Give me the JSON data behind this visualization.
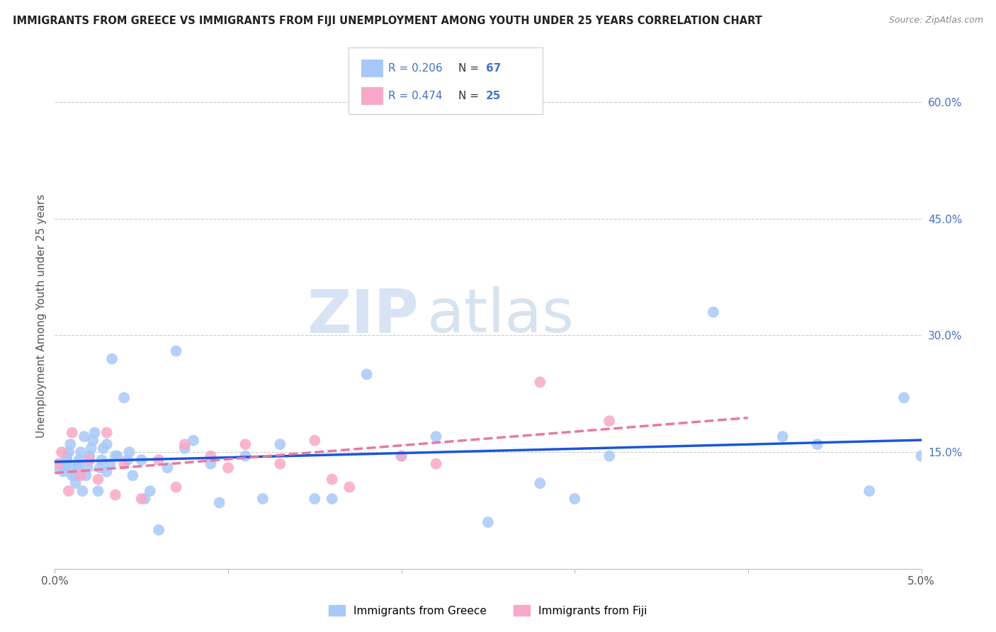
{
  "title": "IMMIGRANTS FROM GREECE VS IMMIGRANTS FROM FIJI UNEMPLOYMENT AMONG YOUTH UNDER 25 YEARS CORRELATION CHART",
  "source": "Source: ZipAtlas.com",
  "ylabel": "Unemployment Among Youth under 25 years",
  "right_yticks": [
    "60.0%",
    "45.0%",
    "30.0%",
    "15.0%"
  ],
  "right_ytick_vals": [
    0.6,
    0.45,
    0.3,
    0.15
  ],
  "bottom_legend1": "Immigrants from Greece",
  "bottom_legend2": "Immigrants from Fiji",
  "greece_color": "#a8c8f8",
  "fiji_color": "#f8a8c8",
  "greece_line_color": "#1a56db",
  "fiji_line_color": "#e879a0",
  "background_color": "#ffffff",
  "watermark_zip": "ZIP",
  "watermark_atlas": "atlas",
  "greece_R": 0.206,
  "greece_N": 67,
  "fiji_R": 0.474,
  "fiji_N": 25,
  "xlim": [
    0.0,
    0.05
  ],
  "ylim": [
    0.0,
    0.65
  ],
  "greece_x": [
    0.0002,
    0.0003,
    0.0005,
    0.0006,
    0.0007,
    0.0007,
    0.0008,
    0.0009,
    0.001,
    0.001,
    0.0012,
    0.0012,
    0.0013,
    0.0014,
    0.0014,
    0.0015,
    0.0016,
    0.0017,
    0.0018,
    0.0019,
    0.002,
    0.002,
    0.0021,
    0.0022,
    0.0023,
    0.0025,
    0.0026,
    0.0027,
    0.0028,
    0.003,
    0.003,
    0.0032,
    0.0033,
    0.0035,
    0.0036,
    0.004,
    0.0042,
    0.0043,
    0.0045,
    0.005,
    0.0052,
    0.0055,
    0.006,
    0.0065,
    0.007,
    0.0075,
    0.008,
    0.009,
    0.0095,
    0.011,
    0.012,
    0.013,
    0.015,
    0.016,
    0.018,
    0.02,
    0.022,
    0.025,
    0.028,
    0.03,
    0.032,
    0.038,
    0.042,
    0.044,
    0.047,
    0.049,
    0.05
  ],
  "greece_y": [
    0.13,
    0.135,
    0.125,
    0.13,
    0.14,
    0.145,
    0.15,
    0.16,
    0.12,
    0.13,
    0.11,
    0.12,
    0.13,
    0.135,
    0.14,
    0.15,
    0.1,
    0.17,
    0.12,
    0.13,
    0.14,
    0.145,
    0.155,
    0.165,
    0.175,
    0.1,
    0.13,
    0.14,
    0.155,
    0.16,
    0.125,
    0.135,
    0.27,
    0.145,
    0.145,
    0.22,
    0.14,
    0.15,
    0.12,
    0.14,
    0.09,
    0.1,
    0.05,
    0.13,
    0.28,
    0.155,
    0.165,
    0.135,
    0.085,
    0.145,
    0.09,
    0.16,
    0.09,
    0.09,
    0.25,
    0.145,
    0.17,
    0.06,
    0.11,
    0.09,
    0.145,
    0.33,
    0.17,
    0.16,
    0.1,
    0.22,
    0.145
  ],
  "fiji_x": [
    0.0002,
    0.0004,
    0.0008,
    0.001,
    0.0015,
    0.002,
    0.0025,
    0.003,
    0.0035,
    0.004,
    0.005,
    0.006,
    0.007,
    0.0075,
    0.009,
    0.01,
    0.011,
    0.013,
    0.015,
    0.016,
    0.017,
    0.02,
    0.022,
    0.028,
    0.032
  ],
  "fiji_y": [
    0.135,
    0.15,
    0.1,
    0.175,
    0.12,
    0.14,
    0.115,
    0.175,
    0.095,
    0.135,
    0.09,
    0.14,
    0.105,
    0.16,
    0.145,
    0.13,
    0.16,
    0.135,
    0.165,
    0.115,
    0.105,
    0.145,
    0.135,
    0.24,
    0.19
  ]
}
